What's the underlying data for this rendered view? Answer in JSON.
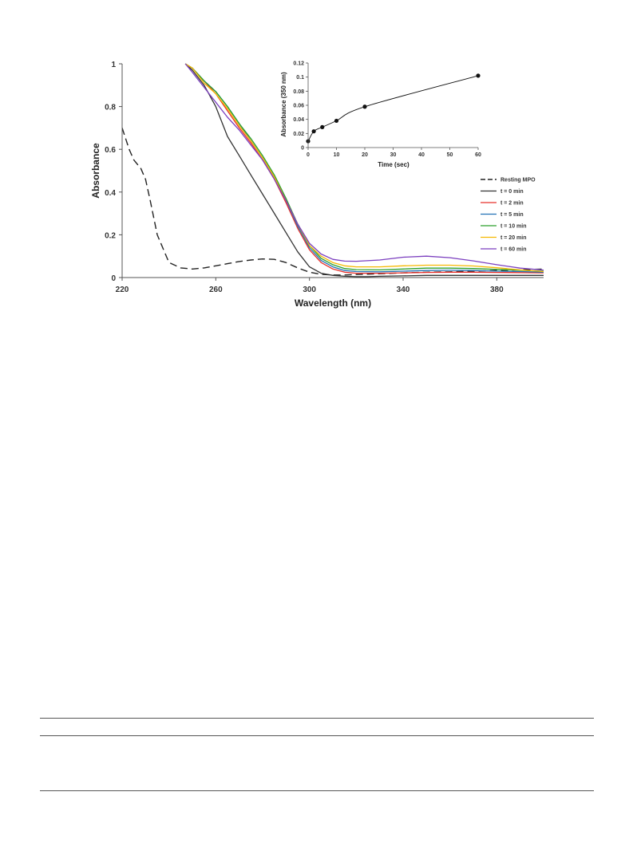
{
  "chart_data": [
    {
      "type": "line",
      "title": "",
      "xlabel": "Wavelength (nm)",
      "ylabel": "Absorbance",
      "xlim": [
        220,
        400
      ],
      "ylim": [
        0,
        1
      ],
      "x_ticks": [
        220,
        260,
        300,
        340,
        380
      ],
      "y_ticks": [
        0,
        0.2,
        0.4,
        0.6,
        0.8,
        1
      ],
      "y_tick_labels": [
        "0",
        "0.2",
        "0.4",
        "0.6",
        "0.8",
        "1"
      ],
      "grid": false,
      "legend_position": "right",
      "series": [
        {
          "name": "Resting MPO",
          "color": "#222222",
          "dash": true,
          "x": [
            220,
            223,
            225,
            228,
            230,
            232,
            235,
            240,
            245,
            250,
            255,
            260,
            265,
            270,
            275,
            280,
            285,
            290,
            295,
            300,
            305,
            310,
            315,
            320,
            330,
            340,
            350,
            360,
            370,
            380,
            390,
            400
          ],
          "y": [
            0.7,
            0.6,
            0.55,
            0.51,
            0.46,
            0.36,
            0.2,
            0.07,
            0.045,
            0.04,
            0.045,
            0.055,
            0.065,
            0.075,
            0.082,
            0.087,
            0.085,
            0.07,
            0.045,
            0.025,
            0.015,
            0.012,
            0.012,
            0.014,
            0.018,
            0.022,
            0.025,
            0.027,
            0.03,
            0.033,
            0.036,
            0.04
          ]
        },
        {
          "name": "t = 0 min",
          "color": "#333333",
          "dash": false,
          "x": [
            247,
            250,
            255,
            260,
            265,
            270,
            275,
            280,
            285,
            290,
            295,
            300,
            305,
            310,
            315,
            320,
            325,
            330,
            340,
            350,
            360,
            370,
            380,
            390,
            400
          ],
          "y": [
            1.0,
            0.97,
            0.9,
            0.8,
            0.66,
            0.57,
            0.48,
            0.39,
            0.3,
            0.21,
            0.12,
            0.05,
            0.02,
            0.01,
            0.006,
            0.004,
            0.004,
            0.006,
            0.008,
            0.01,
            0.01,
            0.01,
            0.01,
            0.01,
            0.01
          ]
        },
        {
          "name": "t = 2 min",
          "color": "#e8302a",
          "dash": false,
          "x": [
            247,
            250,
            255,
            260,
            265,
            270,
            275,
            280,
            285,
            290,
            295,
            300,
            305,
            310,
            315,
            320,
            330,
            340,
            350,
            360,
            370,
            380,
            390,
            400
          ],
          "y": [
            1.0,
            0.98,
            0.92,
            0.86,
            0.78,
            0.7,
            0.63,
            0.55,
            0.46,
            0.35,
            0.23,
            0.13,
            0.07,
            0.04,
            0.025,
            0.02,
            0.02,
            0.022,
            0.024,
            0.025,
            0.025,
            0.024,
            0.023,
            0.022
          ]
        },
        {
          "name": "t = 5 min",
          "color": "#2171b5",
          "dash": false,
          "x": [
            247,
            250,
            255,
            260,
            265,
            270,
            275,
            280,
            285,
            290,
            295,
            300,
            305,
            310,
            315,
            320,
            330,
            340,
            350,
            360,
            370,
            380,
            390,
            400
          ],
          "y": [
            1.0,
            0.98,
            0.92,
            0.87,
            0.8,
            0.72,
            0.64,
            0.56,
            0.47,
            0.36,
            0.24,
            0.14,
            0.08,
            0.05,
            0.033,
            0.028,
            0.027,
            0.03,
            0.033,
            0.034,
            0.033,
            0.03,
            0.028,
            0.025
          ]
        },
        {
          "name": "t = 10 min",
          "color": "#2ca02c",
          "dash": false,
          "x": [
            247,
            250,
            255,
            260,
            265,
            270,
            275,
            280,
            285,
            290,
            295,
            300,
            305,
            310,
            315,
            320,
            330,
            340,
            350,
            360,
            370,
            380,
            390,
            400
          ],
          "y": [
            1.0,
            0.98,
            0.92,
            0.87,
            0.8,
            0.72,
            0.65,
            0.57,
            0.48,
            0.37,
            0.25,
            0.15,
            0.09,
            0.06,
            0.042,
            0.037,
            0.036,
            0.04,
            0.044,
            0.044,
            0.042,
            0.038,
            0.034,
            0.03
          ]
        },
        {
          "name": "t = 20 min",
          "color": "#f5b800",
          "dash": false,
          "x": [
            247,
            250,
            255,
            260,
            265,
            270,
            275,
            280,
            285,
            290,
            295,
            300,
            305,
            310,
            315,
            320,
            330,
            340,
            350,
            360,
            370,
            380,
            390,
            400
          ],
          "y": [
            1.0,
            0.98,
            0.91,
            0.86,
            0.79,
            0.71,
            0.64,
            0.56,
            0.47,
            0.36,
            0.25,
            0.15,
            0.1,
            0.07,
            0.055,
            0.05,
            0.05,
            0.055,
            0.058,
            0.058,
            0.054,
            0.046,
            0.036,
            0.028
          ]
        },
        {
          "name": "t = 60 min",
          "color": "#7b3fbf",
          "dash": false,
          "x": [
            247,
            250,
            255,
            260,
            265,
            270,
            275,
            280,
            285,
            290,
            295,
            300,
            305,
            310,
            315,
            320,
            330,
            340,
            350,
            360,
            370,
            380,
            390,
            400
          ],
          "y": [
            1.0,
            0.96,
            0.89,
            0.82,
            0.75,
            0.69,
            0.62,
            0.55,
            0.46,
            0.36,
            0.25,
            0.16,
            0.11,
            0.085,
            0.077,
            0.076,
            0.082,
            0.095,
            0.1,
            0.093,
            0.078,
            0.06,
            0.044,
            0.035
          ]
        }
      ]
    },
    {
      "type": "line",
      "title": "",
      "xlabel": "Time (sec)",
      "ylabel": "Absorbance (350 nm)",
      "xlim": [
        0,
        60
      ],
      "ylim": [
        0,
        0.12
      ],
      "x_ticks": [
        0,
        10,
        20,
        30,
        40,
        50,
        60
      ],
      "y_ticks": [
        0,
        0.02,
        0.04,
        0.06,
        0.08,
        0.1,
        0.12
      ],
      "y_tick_labels": [
        "0",
        "0.02",
        "0.04",
        "0.06",
        "0.08",
        "0.1",
        "0.12"
      ],
      "grid": false,
      "legend_position": "none",
      "markers": true,
      "series": [
        {
          "color": "#111111",
          "x": [
            0,
            2,
            5,
            10,
            20,
            60
          ],
          "y": [
            0.009,
            0.023,
            0.029,
            0.038,
            0.058,
            0.102
          ]
        }
      ]
    }
  ]
}
